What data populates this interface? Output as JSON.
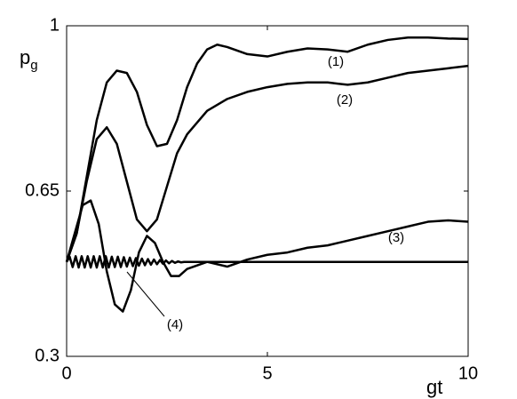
{
  "chart_data": {
    "type": "line",
    "ylabel": "p",
    "ylabel_subscript": "g",
    "xlabel": "gt",
    "xlim": [
      0,
      10
    ],
    "ylim": [
      0.3,
      1
    ],
    "xticks": [
      0,
      5,
      10
    ],
    "yticks": [
      0.3,
      0.65,
      1
    ],
    "color": "#000000",
    "series": [
      {
        "x": [
          0,
          0.25,
          0.5,
          0.75,
          1,
          1.25,
          1.5,
          1.75,
          2,
          2.25,
          2.5,
          2.75,
          3,
          3.25,
          3.5,
          3.75,
          4,
          4.5,
          5,
          5.5,
          6,
          6.5,
          7,
          7.5,
          8,
          8.5,
          9,
          9.5,
          10
        ],
        "values": [
          0.5,
          0.56,
          0.68,
          0.8,
          0.88,
          0.905,
          0.9,
          0.86,
          0.79,
          0.745,
          0.75,
          0.8,
          0.87,
          0.92,
          0.95,
          0.96,
          0.955,
          0.94,
          0.935,
          0.945,
          0.952,
          0.95,
          0.945,
          0.96,
          0.97,
          0.975,
          0.975,
          0.973,
          0.972
        ]
      },
      {
        "x": [
          0,
          0.25,
          0.5,
          0.75,
          1,
          1.25,
          1.5,
          1.75,
          2,
          2.25,
          2.5,
          2.75,
          3,
          3.5,
          4,
          4.5,
          5,
          5.5,
          6,
          6.5,
          7,
          7.5,
          8,
          8.5,
          9,
          9.5,
          10
        ],
        "values": [
          0.5,
          0.56,
          0.67,
          0.76,
          0.785,
          0.75,
          0.67,
          0.59,
          0.565,
          0.59,
          0.66,
          0.73,
          0.77,
          0.82,
          0.845,
          0.86,
          0.87,
          0.877,
          0.88,
          0.88,
          0.875,
          0.88,
          0.89,
          0.9,
          0.905,
          0.91,
          0.915
        ]
      },
      {
        "x": [
          0,
          0.2,
          0.4,
          0.6,
          0.8,
          1,
          1.2,
          1.4,
          1.6,
          1.8,
          2,
          2.2,
          2.4,
          2.6,
          2.8,
          3,
          3.5,
          4,
          4.5,
          5,
          5.5,
          6,
          6.5,
          7,
          7.5,
          8,
          8.5,
          9,
          9.5,
          10
        ],
        "values": [
          0.5,
          0.56,
          0.62,
          0.63,
          0.58,
          0.48,
          0.41,
          0.395,
          0.44,
          0.52,
          0.555,
          0.54,
          0.5,
          0.47,
          0.47,
          0.485,
          0.5,
          0.49,
          0.505,
          0.515,
          0.52,
          0.53,
          0.535,
          0.545,
          0.555,
          0.565,
          0.575,
          0.585,
          0.588,
          0.585
        ]
      },
      {
        "x": [
          0,
          0.075,
          0.15,
          0.225,
          0.3,
          0.375,
          0.45,
          0.525,
          0.6,
          0.675,
          0.75,
          0.825,
          0.9,
          0.975,
          1.05,
          1.125,
          1.2,
          1.275,
          1.35,
          1.425,
          1.5,
          1.575,
          1.65,
          1.725,
          1.8,
          1.875,
          1.95,
          2.025,
          2.1,
          2.175,
          2.25,
          2.325,
          2.4,
          2.475,
          2.55,
          2.625,
          2.7,
          2.775,
          2.85,
          2.925,
          3,
          4,
          5,
          6,
          7,
          8,
          9,
          10
        ],
        "values": [
          0.5,
          0.511,
          0.489,
          0.512,
          0.488,
          0.512,
          0.488,
          0.512,
          0.488,
          0.512,
          0.488,
          0.512,
          0.488,
          0.512,
          0.488,
          0.511,
          0.489,
          0.511,
          0.489,
          0.51,
          0.49,
          0.509,
          0.491,
          0.508,
          0.492,
          0.507,
          0.493,
          0.506,
          0.494,
          0.505,
          0.495,
          0.504,
          0.496,
          0.503,
          0.497,
          0.502,
          0.498,
          0.501,
          0.499,
          0.5,
          0.5,
          0.5,
          0.5,
          0.5,
          0.5,
          0.5,
          0.5,
          0.5
        ]
      }
    ],
    "annotations": [
      "(1)",
      "(2)",
      "(3)",
      "(4)"
    ]
  }
}
